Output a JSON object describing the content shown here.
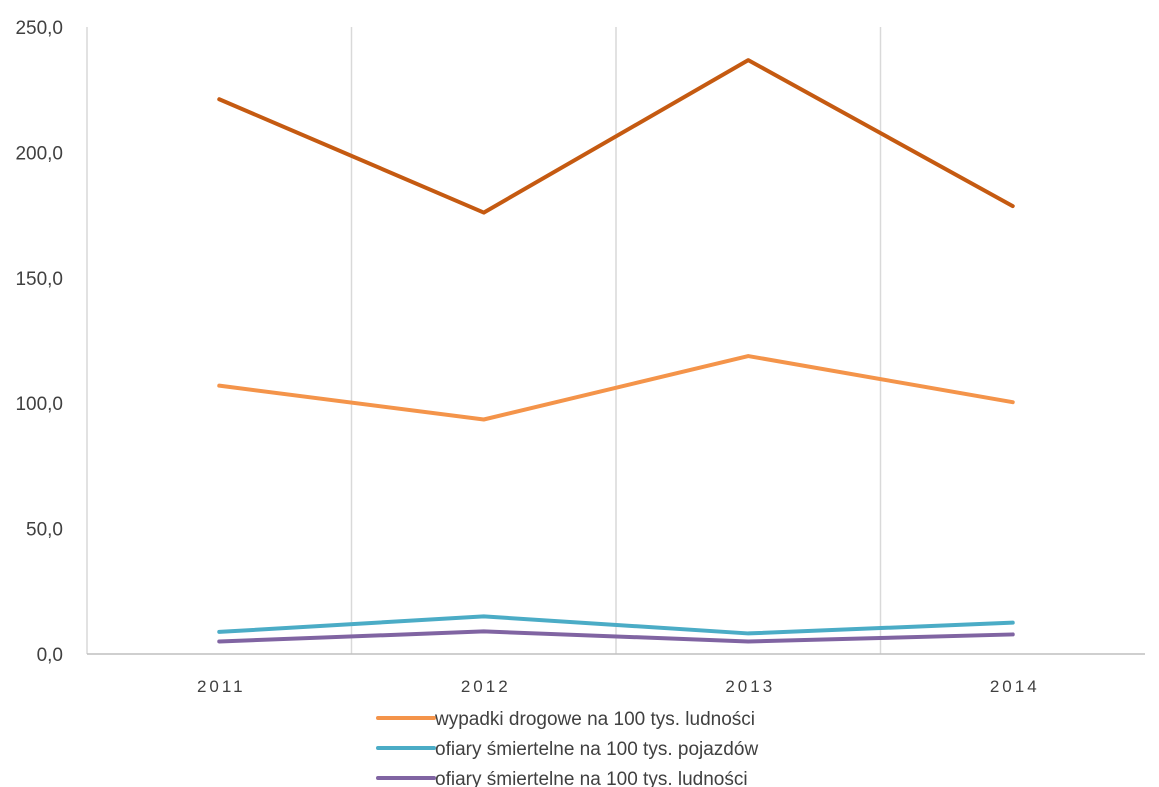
{
  "chart_data": {
    "type": "line",
    "categories": [
      "2011",
      "2012",
      "2013",
      "2014"
    ],
    "ylim": [
      0,
      250
    ],
    "yticks": [
      0,
      50,
      100,
      150,
      200,
      250
    ],
    "ytick_labels": [
      "0,0",
      "50,0",
      "100,0",
      "150,0",
      "200,0",
      "250,0"
    ],
    "grid": "vertical",
    "legend_position": "bottom",
    "series": [
      {
        "name": "",
        "color": "#c55a11",
        "values": [
          221.2,
          176.0,
          236.8,
          178.6
        ]
      },
      {
        "name": "wypadki drogowe na 100 tys. ludności",
        "color": "#f4944a",
        "values": [
          107.0,
          93.5,
          118.8,
          100.4
        ]
      },
      {
        "name": "ofiary śmiertelne na 100 tys. pojazdów",
        "color": "#4bacc6",
        "values": [
          8.8,
          15.0,
          8.2,
          12.5
        ]
      },
      {
        "name": "ofiary śmiertelne na 100 tys. ludności",
        "color": "#8064a2",
        "values": [
          5.0,
          9.0,
          5.0,
          7.8
        ]
      }
    ],
    "legend": [
      "wypadki drogowe na 100 tys. ludności",
      "ofiary śmiertelne na 100 tys. pojazdów",
      "ofiary śmiertelne na 100 tys. ludności"
    ]
  }
}
